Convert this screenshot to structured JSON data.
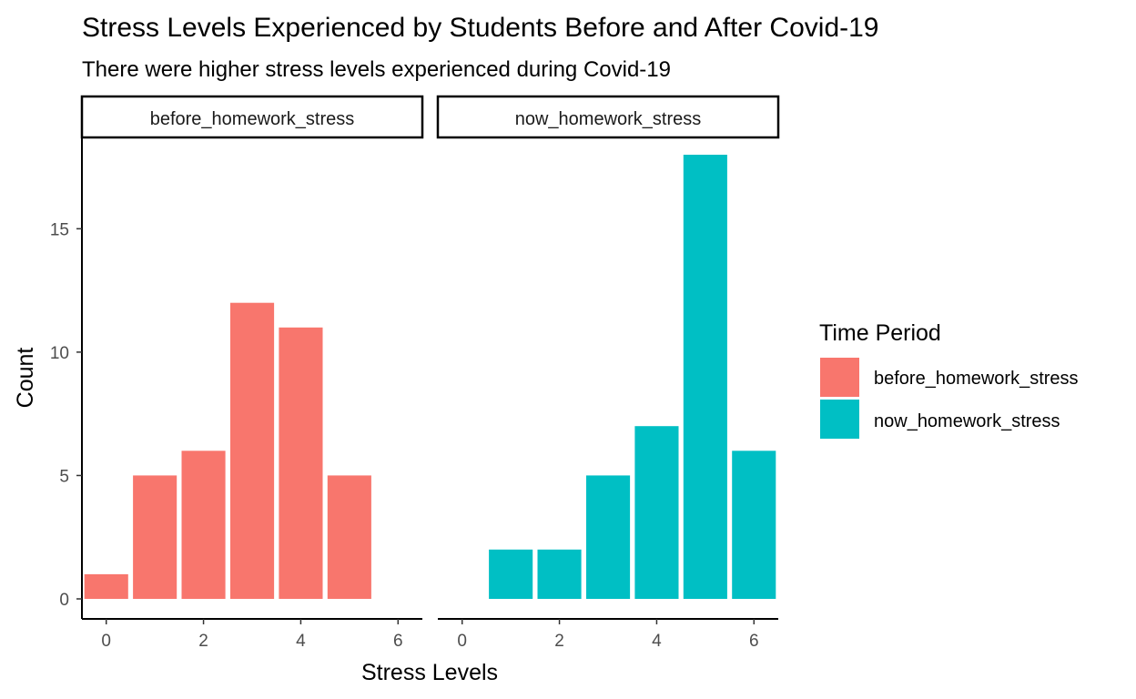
{
  "chart_data": {
    "type": "bar",
    "title": "Stress Levels Experienced by Students Before and After Covid-19",
    "subtitle": "There were higher stress levels experienced during Covid-19",
    "xlabel": "Stress Levels",
    "ylabel": "Count",
    "xlim": [
      -0.5,
      6.5
    ],
    "ylim": [
      0,
      18
    ],
    "x_ticks": [
      0,
      2,
      4,
      6
    ],
    "y_ticks": [
      0,
      5,
      10,
      15
    ],
    "grid": false,
    "legend": {
      "title": "Time Period",
      "placement": "right",
      "entries": [
        {
          "label": "before_homework_stress",
          "color": "#F8766D"
        },
        {
          "label": "now_homework_stress",
          "color": "#00BFC4"
        }
      ]
    },
    "facets": [
      {
        "label": "before_homework_stress",
        "color": "#F8766D",
        "x": [
          0,
          1,
          2,
          3,
          4,
          5
        ],
        "values": [
          1,
          5,
          6,
          12,
          11,
          5
        ]
      },
      {
        "label": "now_homework_stress",
        "color": "#00BFC4",
        "x": [
          1,
          2,
          3,
          4,
          5,
          6
        ],
        "values": [
          2,
          2,
          5,
          7,
          18,
          6
        ]
      }
    ]
  }
}
